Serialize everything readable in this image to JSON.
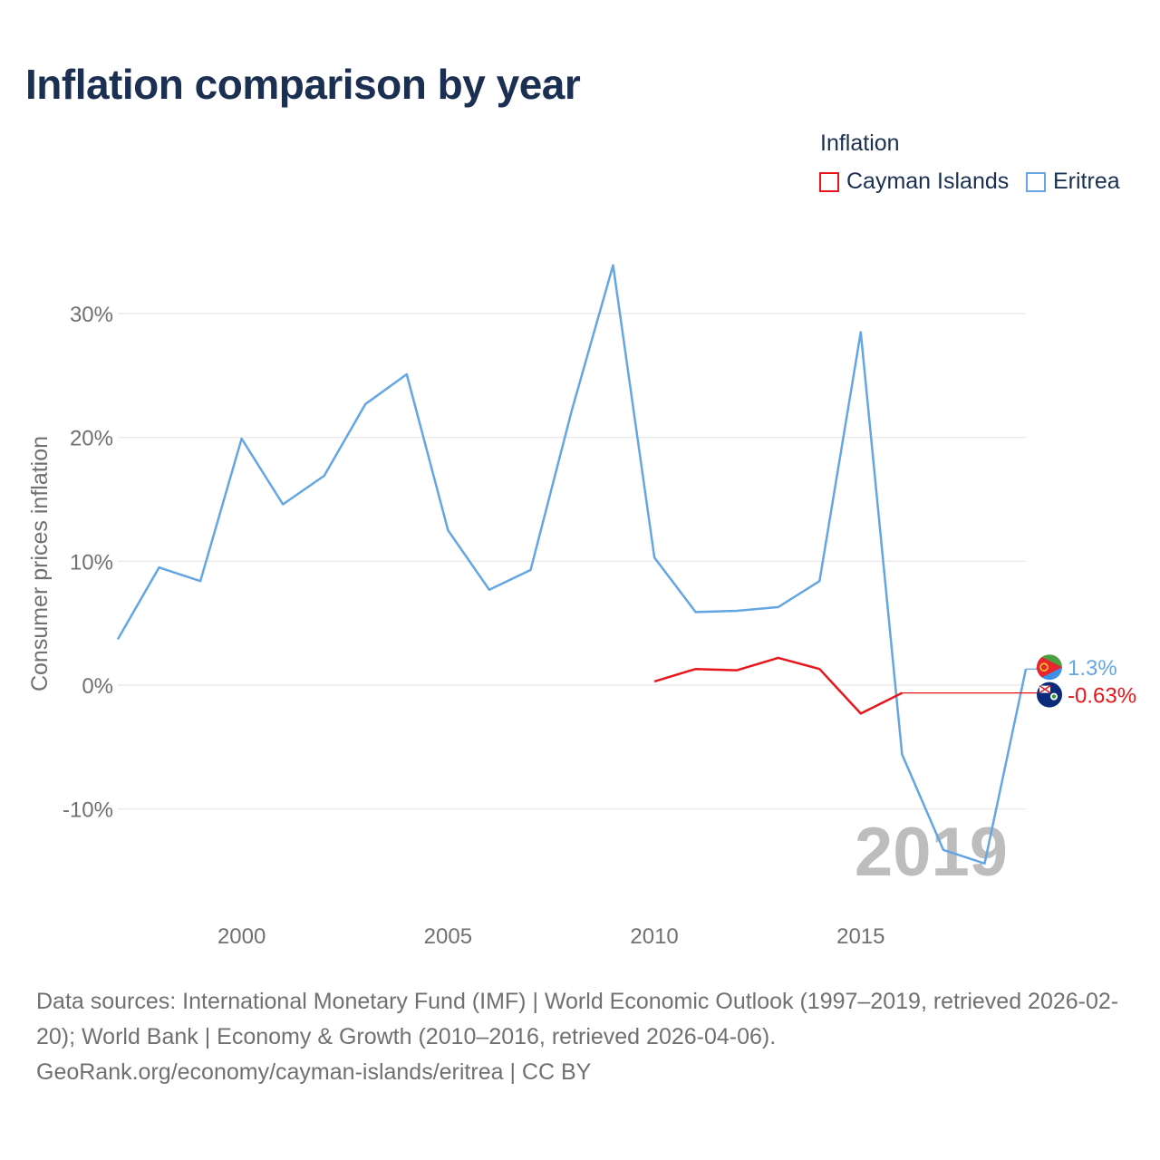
{
  "title": "Inflation comparison by year",
  "legend": {
    "title": "Inflation",
    "items": [
      {
        "label": "Cayman Islands",
        "color": "#e8161c"
      },
      {
        "label": "Eritrea",
        "color": "#63a6e3"
      }
    ]
  },
  "year_watermark": "2019",
  "footer": {
    "sources": "Data sources: International Monetary Fund (IMF) | World Economic Outlook (1997–2019, retrieved 2026-02-20); World Bank | Economy & Growth (2010–2016, retrieved 2026-04-06).",
    "link": "GeoRank.org/economy/cayman-islands/eritrea | CC BY"
  },
  "chart_data": {
    "type": "line",
    "title": "Inflation comparison by year",
    "xlabel": "",
    "ylabel": "Consumer prices inflation",
    "xlim": [
      1997,
      2019
    ],
    "ylim": [
      -15.5,
      35
    ],
    "x_ticks": [
      2000,
      2005,
      2010,
      2015
    ],
    "x_tick_labels": [
      "2000",
      "2005",
      "2010",
      "2015"
    ],
    "y_ticks": [
      -10,
      0,
      10,
      20,
      30
    ],
    "y_tick_labels": [
      "-10%",
      "0%",
      "10%",
      "20%",
      "30%"
    ],
    "grid": true,
    "series": [
      {
        "name": "Eritrea",
        "color": "#63a6e3",
        "x": [
          1997,
          1998,
          1999,
          2000,
          2001,
          2002,
          2003,
          2004,
          2005,
          2006,
          2007,
          2008,
          2009,
          2010,
          2011,
          2012,
          2013,
          2014,
          2015,
          2016,
          2017,
          2018,
          2019
        ],
        "values": [
          3.7,
          9.5,
          8.4,
          19.9,
          14.6,
          16.9,
          22.7,
          25.1,
          12.5,
          7.7,
          9.3,
          22.2,
          33.9,
          10.3,
          5.9,
          6.0,
          6.3,
          8.4,
          28.5,
          -5.6,
          -13.3,
          -14.4,
          1.3
        ],
        "end_label": "1.3%"
      },
      {
        "name": "Cayman Islands",
        "color": "#e8161c",
        "x": [
          2010,
          2011,
          2012,
          2013,
          2014,
          2015,
          2016
        ],
        "values": [
          0.3,
          1.3,
          1.2,
          2.2,
          1.3,
          -2.3,
          -0.63
        ],
        "end_label": "-0.63%"
      }
    ]
  }
}
